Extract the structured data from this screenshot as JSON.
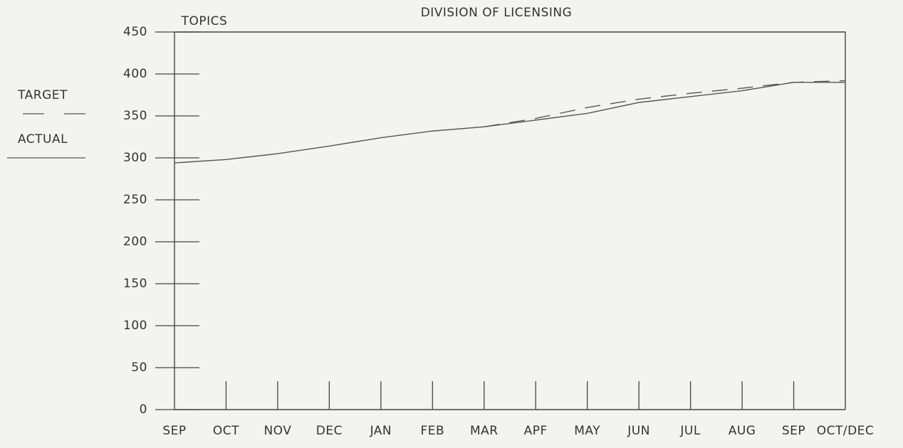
{
  "chart_data": {
    "type": "line",
    "title": "DIVISION OF LICENSING",
    "y_label": "TOPICS",
    "categories": [
      "SEP",
      "OCT",
      "NOV",
      "DEC",
      "JAN",
      "FEB",
      "MAR",
      "APF",
      "MAY",
      "JUN",
      "JUL",
      "AUG",
      "SEP",
      "OCT/DEC"
    ],
    "series": [
      {
        "name": "TARGET",
        "color": "#555555",
        "dash": true,
        "values": [
          null,
          null,
          null,
          null,
          null,
          null,
          337,
          347,
          360,
          370,
          377,
          383,
          390,
          392
        ]
      },
      {
        "name": "ACTUAL",
        "color": "#555555",
        "dash": false,
        "values": [
          294,
          298,
          305,
          314,
          324,
          332,
          337,
          345,
          353,
          366,
          373,
          380,
          390,
          390
        ]
      }
    ],
    "ylim": [
      0,
      450
    ],
    "yticks": [
      0,
      50,
      100,
      150,
      200,
      250,
      300,
      350,
      400,
      450
    ]
  }
}
